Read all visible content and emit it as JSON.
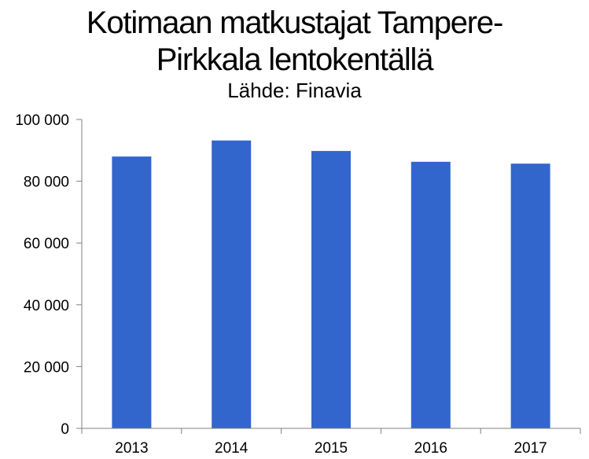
{
  "chart_data": {
    "type": "bar",
    "title_lines": [
      "Kotimaan matkustajat Tampere-",
      "Pirkkala lentokentällä"
    ],
    "subtitle": "Lähde: Finavia",
    "categories": [
      "2013",
      "2014",
      "2015",
      "2016",
      "2017"
    ],
    "values": [
      88000,
      93200,
      89800,
      86300,
      85700
    ],
    "ylim": [
      0,
      100000
    ],
    "yticks": [
      0,
      20000,
      40000,
      60000,
      80000,
      100000
    ],
    "ytick_labels": [
      "0",
      "20 000",
      "40 000",
      "60 000",
      "80 000",
      "100 000"
    ],
    "xlabel": "",
    "ylabel": "",
    "grid": false,
    "legend": "none",
    "bar_color": "#3366CC"
  }
}
